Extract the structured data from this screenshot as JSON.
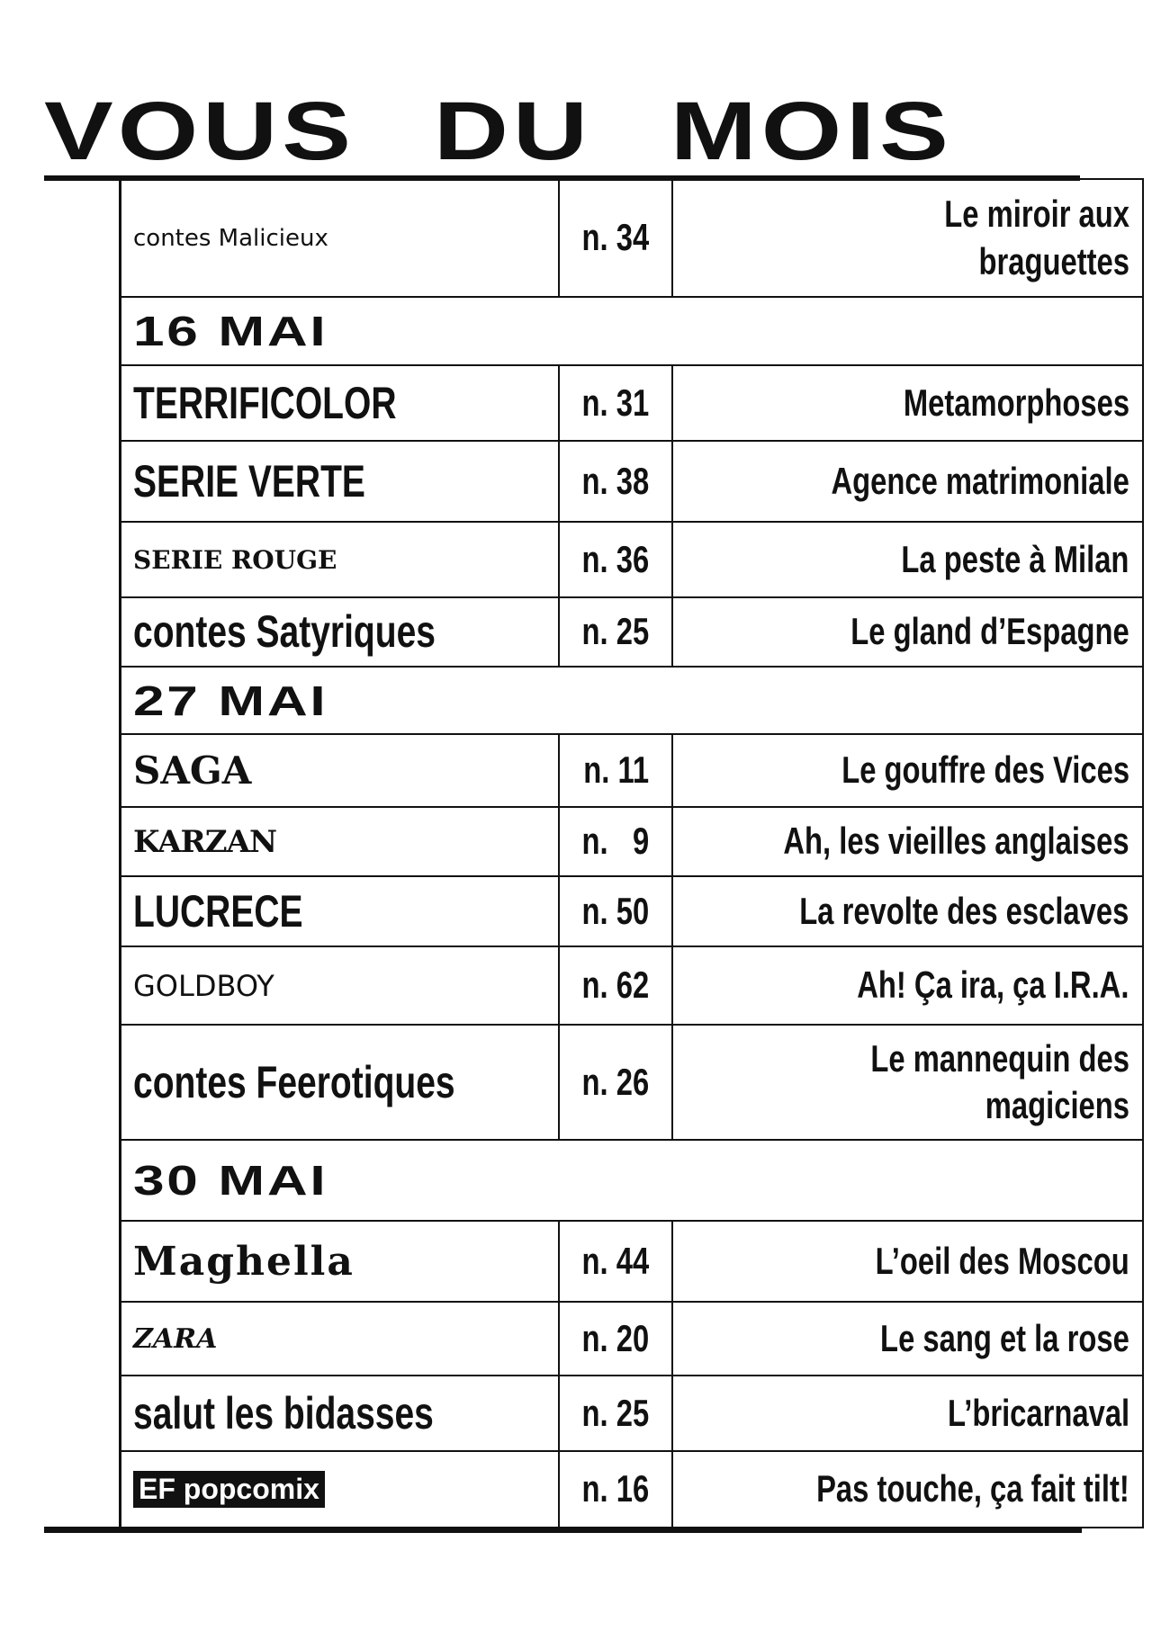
{
  "title": "VOUS DU MOIS",
  "rows": [
    {
      "type": "item",
      "series": "contes Malicieux",
      "number": "n. 34",
      "episode": "Le miroir aux braguettes"
    },
    {
      "type": "date",
      "label": "16 MAI"
    },
    {
      "type": "item",
      "series": "TERRIFICOLOR",
      "number": "n. 31",
      "episode": "Metamorphoses"
    },
    {
      "type": "item",
      "series": "SERIE VERTE",
      "number": "n. 38",
      "episode": "Agence matrimoniale"
    },
    {
      "type": "item",
      "series": "SERIE ROUGE",
      "number": "n. 36",
      "episode": "La peste à Milan"
    },
    {
      "type": "item",
      "series": "contes Satyriques",
      "number": "n. 25",
      "episode": "Le gland d’Espagne"
    },
    {
      "type": "date",
      "label": "27 MAI"
    },
    {
      "type": "item",
      "series": "SAGA",
      "number": "n. 11",
      "episode": "Le gouffre des Vices"
    },
    {
      "type": "item",
      "series": "KARZAN",
      "number": "n.   9",
      "episode": "Ah, les vieilles anglaises"
    },
    {
      "type": "item",
      "series": "LUCRECE",
      "number": "n. 50",
      "episode": "La revolte des esclaves"
    },
    {
      "type": "item",
      "series": "GOLDBOY",
      "number": "n. 62",
      "episode": "Ah! Ça ira, ça I.R.A."
    },
    {
      "type": "item",
      "series": "contes Feerotiques",
      "number": "n. 26",
      "episode": "Le mannequin des magiciens"
    },
    {
      "type": "date",
      "label": "30 MAI"
    },
    {
      "type": "item",
      "series": "Maghella",
      "number": "n. 44",
      "episode": "L’oeil des Moscou"
    },
    {
      "type": "item",
      "series": "ZARA",
      "number": "n. 20",
      "episode": "Le sang et la rose"
    },
    {
      "type": "item",
      "series": "salut les bidasses",
      "number": "n. 25",
      "episode": "L’bricarnaval"
    },
    {
      "type": "item",
      "series": "EF popcomix",
      "number": "n. 16",
      "episode": "Pas touche, ça fait tilt!"
    }
  ]
}
